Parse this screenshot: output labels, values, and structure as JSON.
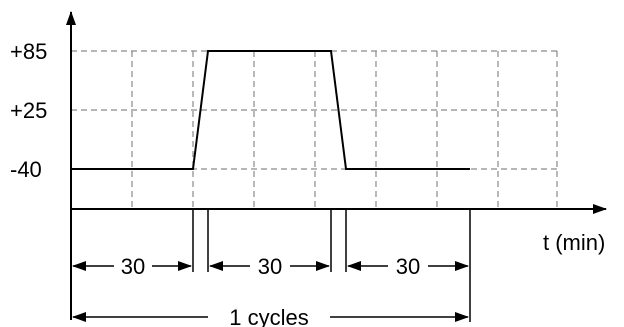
{
  "y_levels": [
    "+85",
    "+25",
    "-40"
  ],
  "x_axis_label": "t (min)",
  "segments": [
    {
      "duration": "30"
    },
    {
      "duration": "30"
    },
    {
      "duration": "30"
    }
  ],
  "cycle_label": "1 cycles"
}
